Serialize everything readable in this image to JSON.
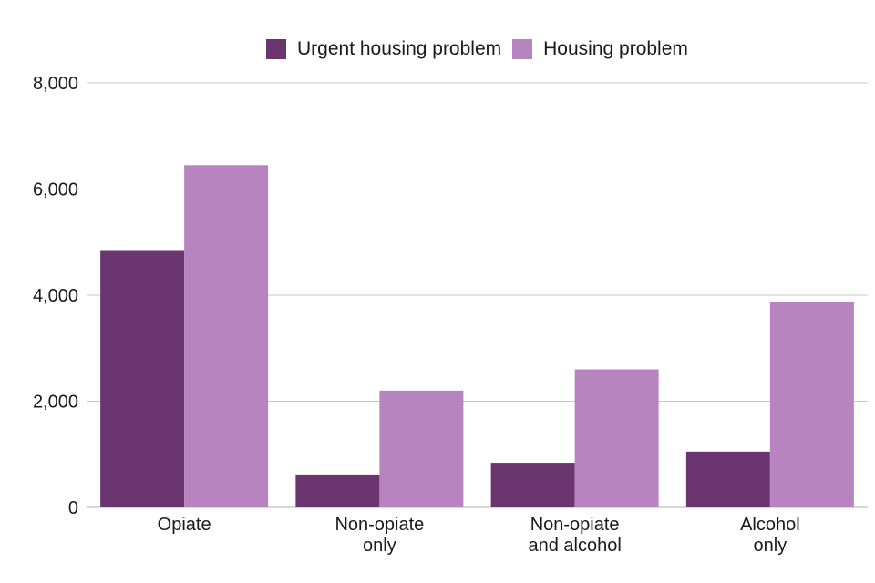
{
  "chart_data": {
    "type": "bar",
    "categories": [
      [
        "Opiate"
      ],
      [
        "Non-opiate",
        "only"
      ],
      [
        "Non-opiate",
        "and alcohol"
      ],
      [
        "Alcohol",
        "only"
      ]
    ],
    "series": [
      {
        "name": "Urgent housing problem",
        "color": "#6b3570",
        "values": [
          4850,
          620,
          840,
          1050
        ]
      },
      {
        "name": "Housing problem",
        "color": "#b784c0",
        "values": [
          6450,
          2200,
          2600,
          3880
        ]
      }
    ],
    "yticks": [
      "0",
      "2,000",
      "4,000",
      "6,000",
      "8,000"
    ],
    "ylim": [
      0,
      8000
    ],
    "grid": true,
    "legend_position": "top"
  }
}
